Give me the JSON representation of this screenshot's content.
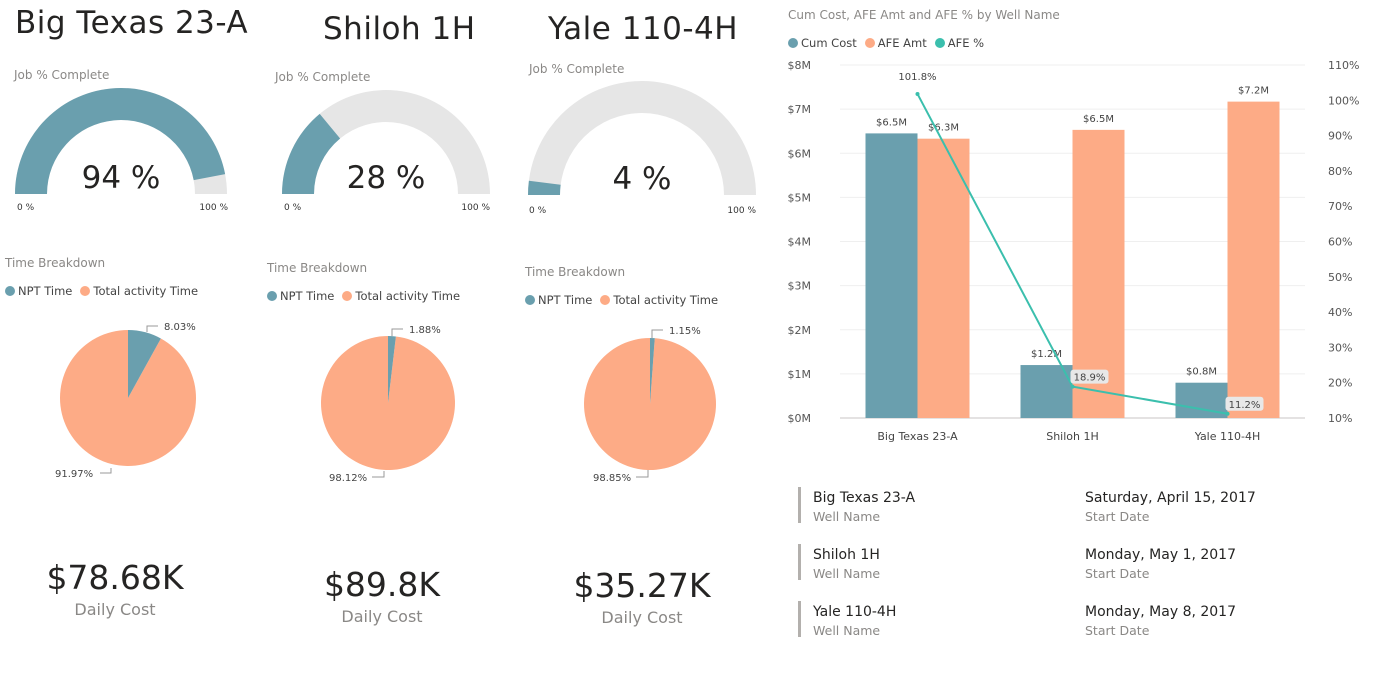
{
  "wells": [
    {
      "title": "Big Texas 23-A",
      "gauge": {
        "label": "Job % Complete",
        "value_text": "94 %",
        "fraction": 0.94,
        "min_label": "0 %",
        "max_label": "100 %"
      },
      "time": {
        "label": "Time Breakdown",
        "npt_pct": 8.03,
        "npt_label": "8.03%",
        "total_label": "91.97%"
      },
      "daily_cost": {
        "value": "$78.68K",
        "label": "Daily Cost"
      }
    },
    {
      "title": "Shiloh 1H",
      "gauge": {
        "label": "Job % Complete",
        "value_text": "28 %",
        "fraction": 0.28,
        "min_label": "0 %",
        "max_label": "100 %"
      },
      "time": {
        "label": "Time Breakdown",
        "npt_pct": 1.88,
        "npt_label": "1.88%",
        "total_label": "98.12%"
      },
      "daily_cost": {
        "value": "$89.8K",
        "label": "Daily Cost"
      }
    },
    {
      "title": "Yale 110-4H",
      "gauge": {
        "label": "Job % Complete",
        "value_text": "4 %",
        "fraction": 0.04,
        "min_label": "0 %",
        "max_label": "100 %"
      },
      "time": {
        "label": "Time Breakdown",
        "npt_pct": 1.15,
        "npt_label": "1.15%",
        "total_label": "98.85%"
      },
      "daily_cost": {
        "value": "$35.27K",
        "label": "Daily Cost"
      }
    }
  ],
  "time_legend": {
    "npt": "NPT Time",
    "total": "Total activity Time"
  },
  "colors": {
    "teal": "#6a9fae",
    "salmon": "#fdab86",
    "aqua": "#3bbfad",
    "track": "#e6e6e6"
  },
  "chart_data": {
    "type": "bar",
    "title": "Cum Cost, AFE Amt and AFE % by Well Name",
    "categories": [
      "Big Texas 23-A",
      "Shiloh 1H",
      "Yale 110-4H"
    ],
    "series": [
      {
        "name": "Cum Cost",
        "values": [
          6.45,
          1.2,
          0.8
        ],
        "labels": [
          "$6.5M",
          "$1.2M",
          "$0.8M"
        ]
      },
      {
        "name": "AFE Amt",
        "values": [
          6.33,
          6.53,
          7.17
        ],
        "labels": [
          "$6.3M",
          "$6.5M",
          "$7.2M"
        ]
      },
      {
        "name": "AFE %",
        "type": "line",
        "axis": "right",
        "values": [
          101.8,
          18.9,
          11.2
        ],
        "labels": [
          "101.8%",
          "18.9%",
          "11.2%"
        ]
      }
    ],
    "y_left": {
      "min": 0,
      "max": 8,
      "ticks": [
        "$0M",
        "$1M",
        "$2M",
        "$3M",
        "$4M",
        "$5M",
        "$6M",
        "$7M",
        "$8M"
      ]
    },
    "y_right": {
      "min": 10,
      "max": 110,
      "ticks": [
        "10%",
        "20%",
        "30%",
        "40%",
        "50%",
        "60%",
        "70%",
        "80%",
        "90%",
        "100%",
        "110%"
      ]
    },
    "legend": [
      "Cum Cost",
      "AFE Amt",
      "AFE %"
    ]
  },
  "well_cards": [
    {
      "name": "Big Texas 23-A",
      "name_label": "Well Name",
      "date": "Saturday, April 15, 2017",
      "date_label": "Start Date"
    },
    {
      "name": "Shiloh 1H",
      "name_label": "Well Name",
      "date": "Monday, May 1, 2017",
      "date_label": "Start Date"
    },
    {
      "name": "Yale 110-4H",
      "name_label": "Well Name",
      "date": "Monday, May 8, 2017",
      "date_label": "Start Date"
    }
  ]
}
